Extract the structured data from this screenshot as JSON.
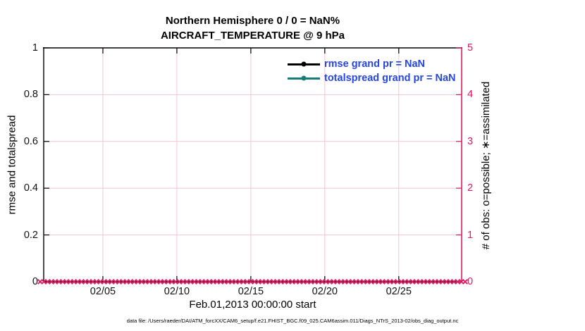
{
  "chart_data": {
    "type": "line",
    "title": "Northern Hemisphere 0 / 0 = NaN%",
    "subtitle": "AIRCRAFT_TEMPERATURE @ 9 hPa",
    "xlabel": "Feb.01,2013 00:00:00 start",
    "ylabel_left": "rmse and totalspread",
    "ylabel_right": "# of obs: o=possible; ∗=assimilated",
    "x_tick_labels": [
      "02/05",
      "02/10",
      "02/15",
      "02/20",
      "02/25"
    ],
    "x_tick_days": [
      4,
      9,
      14,
      19,
      24
    ],
    "x_range_days": [
      0,
      28.25
    ],
    "ylim_left": [
      0,
      1
    ],
    "y_tick_labels_left": [
      "0",
      "0.2",
      "0.4",
      "0.6",
      "0.8",
      "1"
    ],
    "y_tick_values_left": [
      0,
      0.2,
      0.4,
      0.6,
      0.8,
      1
    ],
    "ylim_right": [
      0,
      5
    ],
    "y_tick_labels_right": [
      "0",
      "1",
      "2",
      "3",
      "4",
      "5"
    ],
    "y_tick_values_right": [
      0,
      1,
      2,
      3,
      4,
      5
    ],
    "grid": "on",
    "legend_position": "upper right, no box",
    "legend_text_color": "#2646e0",
    "series": [
      {
        "name": "rmse grand pr = NaN",
        "color": "#000000",
        "values": []
      },
      {
        "name": "totalspread grand pr = NaN",
        "color": "#177d76",
        "values": []
      }
    ],
    "assimilated_markers": {
      "symbol": "x",
      "color": "#dc1a60",
      "y_value": 0,
      "count": 114
    }
  },
  "footer": {
    "data_file": "data file: /Users/raeder/DAI/ATM_forcXX/CAM6_setup/f.e21.FHIST_BGC.f09_025.CAM6assim.011/Diags_NTrS_2013-02/obs_diag_output.nc"
  },
  "colors": {
    "axis_left": "#000000",
    "axis_right": "#dc1a60",
    "grid": "#f3c6d3",
    "tick_label": "#111111",
    "background": "#ffffff"
  }
}
